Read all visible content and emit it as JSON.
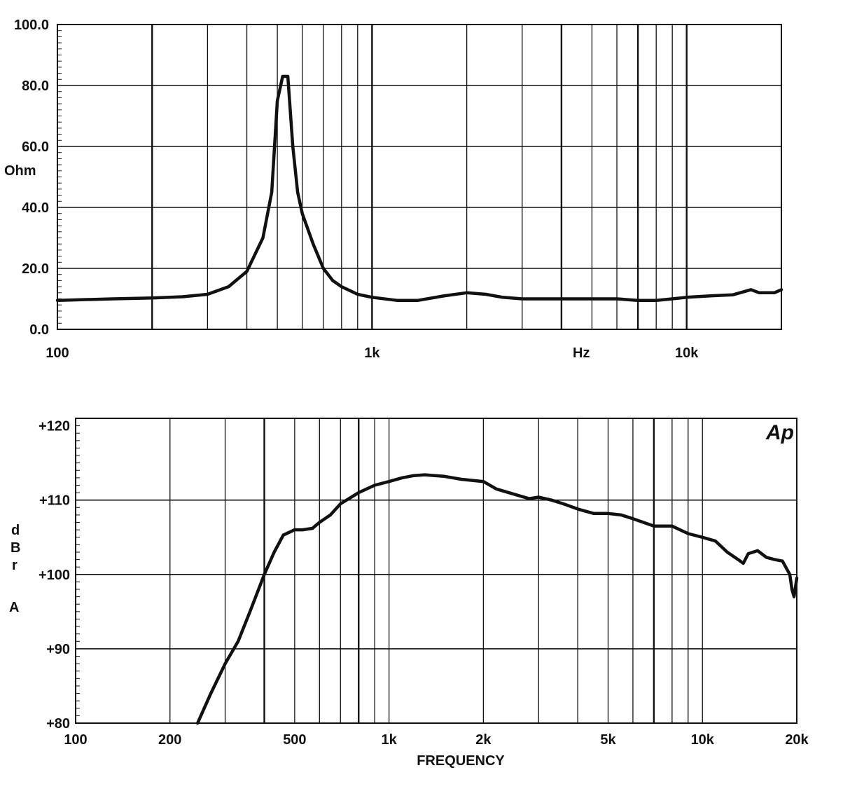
{
  "chart_data": [
    {
      "type": "line",
      "title": "",
      "ylabel": "Ohm",
      "xlabel_inline": "Hz",
      "x_scale": "log",
      "xlim": [
        100,
        20000
      ],
      "ylim": [
        0,
        100
      ],
      "grid": true,
      "x_ticks": [
        {
          "value": 100,
          "label": "100"
        },
        {
          "value": 1000,
          "label": "1k"
        },
        {
          "value": 10000,
          "label": "10k"
        }
      ],
      "y_ticks": [
        {
          "value": 0,
          "label": "0.0"
        },
        {
          "value": 20,
          "label": "20.0"
        },
        {
          "value": 40,
          "label": "40.0"
        },
        {
          "value": 60,
          "label": "60.0"
        },
        {
          "value": 80,
          "label": "80.0"
        },
        {
          "value": 100,
          "label": "100.0"
        }
      ],
      "x_gridlines": [
        200,
        300,
        400,
        500,
        600,
        700,
        800,
        900,
        1000,
        2000,
        3000,
        4000,
        5000,
        6000,
        7000,
        8000,
        9000,
        10000
      ],
      "y_gridlines": [
        20,
        40,
        60,
        80
      ],
      "series": [
        {
          "x": [
            100,
            150,
            200,
            250,
            300,
            350,
            400,
            450,
            480,
            500,
            520,
            540,
            560,
            580,
            600,
            650,
            700,
            750,
            800,
            900,
            1000,
            1200,
            1400,
            1700,
            2000,
            2300,
            2600,
            3000,
            3500,
            4000,
            5000,
            6000,
            7000,
            8000,
            9000,
            10000,
            12000,
            14000,
            16000,
            17000,
            18000,
            19000,
            20000
          ],
          "y": [
            9.5,
            10,
            10.3,
            10.7,
            11.5,
            14,
            19,
            30,
            45,
            75,
            83,
            83,
            60,
            45,
            38,
            28,
            20,
            16,
            14,
            11.5,
            10.5,
            9.5,
            9.5,
            11,
            12,
            11.5,
            10.5,
            10,
            10,
            10,
            10,
            10,
            9.5,
            9.5,
            10,
            10.5,
            11,
            11.3,
            13,
            12,
            12,
            12,
            13
          ]
        }
      ]
    },
    {
      "type": "line",
      "title": "",
      "xlabel": "FREQUENCY",
      "ylabel_letters": [
        "d",
        "B",
        "r",
        "A"
      ],
      "logo": "Ap",
      "x_scale": "log",
      "xlim": [
        100,
        20000
      ],
      "ylim": [
        80,
        121
      ],
      "grid": true,
      "x_ticks": [
        {
          "value": 100,
          "label": "100"
        },
        {
          "value": 200,
          "label": "200"
        },
        {
          "value": 500,
          "label": "500"
        },
        {
          "value": 1000,
          "label": "1k"
        },
        {
          "value": 2000,
          "label": "2k"
        },
        {
          "value": 5000,
          "label": "5k"
        },
        {
          "value": 10000,
          "label": "10k"
        },
        {
          "value": 20000,
          "label": "20k"
        }
      ],
      "y_ticks": [
        {
          "value": 80,
          "label": "+80"
        },
        {
          "value": 90,
          "label": "+90"
        },
        {
          "value": 100,
          "label": "+100"
        },
        {
          "value": 110,
          "label": "+110"
        },
        {
          "value": 120,
          "label": "+120"
        }
      ],
      "x_gridlines": [
        200,
        300,
        400,
        500,
        600,
        700,
        800,
        900,
        1000,
        2000,
        3000,
        4000,
        5000,
        6000,
        7000,
        8000,
        9000,
        10000
      ],
      "y_gridlines": [
        90,
        100,
        110
      ],
      "series": [
        {
          "x": [
            245,
            270,
            300,
            330,
            360,
            400,
            430,
            460,
            500,
            530,
            570,
            600,
            650,
            700,
            800,
            900,
            1000,
            1100,
            1200,
            1300,
            1400,
            1500,
            1700,
            2000,
            2200,
            2500,
            2800,
            3000,
            3300,
            3600,
            4000,
            4500,
            5000,
            5500,
            6000,
            7000,
            8000,
            9000,
            10000,
            11000,
            12000,
            13000,
            13500,
            14000,
            15000,
            16000,
            17000,
            18000,
            19000,
            19300,
            19600,
            20000
          ],
          "y": [
            80,
            84,
            88,
            91,
            95,
            100,
            103,
            105.3,
            106,
            106,
            106.2,
            107,
            108,
            109.5,
            111,
            112,
            112.5,
            113,
            113.3,
            113.4,
            113.3,
            113.2,
            112.8,
            112.5,
            111.5,
            110.8,
            110.2,
            110.4,
            110,
            109.5,
            108.8,
            108.2,
            108.2,
            108,
            107.5,
            106.5,
            106.5,
            105.5,
            105,
            104.5,
            103,
            102,
            101.5,
            102.8,
            103.2,
            102.3,
            102,
            101.8,
            100,
            98,
            97,
            99.5
          ]
        }
      ]
    }
  ]
}
